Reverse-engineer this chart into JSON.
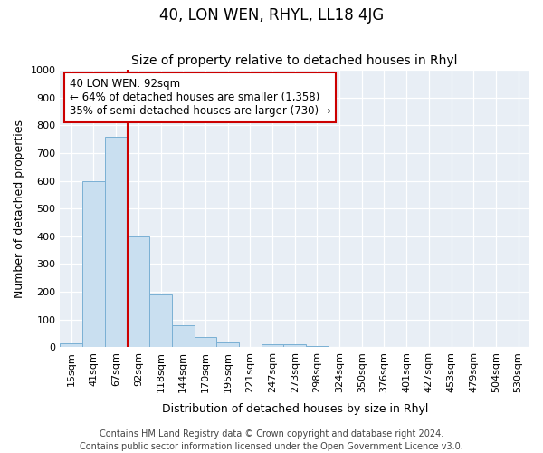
{
  "title": "40, LON WEN, RHYL, LL18 4JG",
  "subtitle": "Size of property relative to detached houses in Rhyl",
  "xlabel": "Distribution of detached houses by size in Rhyl",
  "ylabel": "Number of detached properties",
  "categories": [
    "15sqm",
    "41sqm",
    "67sqm",
    "92sqm",
    "118sqm",
    "144sqm",
    "170sqm",
    "195sqm",
    "221sqm",
    "247sqm",
    "273sqm",
    "298sqm",
    "324sqm",
    "350sqm",
    "376sqm",
    "401sqm",
    "427sqm",
    "453sqm",
    "479sqm",
    "504sqm",
    "530sqm"
  ],
  "values": [
    15,
    600,
    760,
    400,
    190,
    80,
    37,
    18,
    0,
    12,
    10,
    5,
    0,
    0,
    0,
    0,
    0,
    0,
    0,
    0,
    0
  ],
  "bar_color": "#c9dff0",
  "bar_edge_color": "#7ab0d4",
  "red_line_index": 3,
  "annotation_text": "40 LON WEN: 92sqm\n← 64% of detached houses are smaller (1,358)\n35% of semi-detached houses are larger (730) →",
  "annotation_box_facecolor": "#ffffff",
  "annotation_box_edgecolor": "#cc0000",
  "ylim": [
    0,
    1000
  ],
  "yticks": [
    0,
    100,
    200,
    300,
    400,
    500,
    600,
    700,
    800,
    900,
    1000
  ],
  "fig_background": "#ffffff",
  "plot_background": "#e8eef5",
  "grid_color": "#ffffff",
  "footer": "Contains HM Land Registry data © Crown copyright and database right 2024.\nContains public sector information licensed under the Open Government Licence v3.0.",
  "title_fontsize": 12,
  "subtitle_fontsize": 10,
  "xlabel_fontsize": 9,
  "ylabel_fontsize": 9,
  "tick_fontsize": 8,
  "annotation_fontsize": 8.5,
  "footer_fontsize": 7
}
